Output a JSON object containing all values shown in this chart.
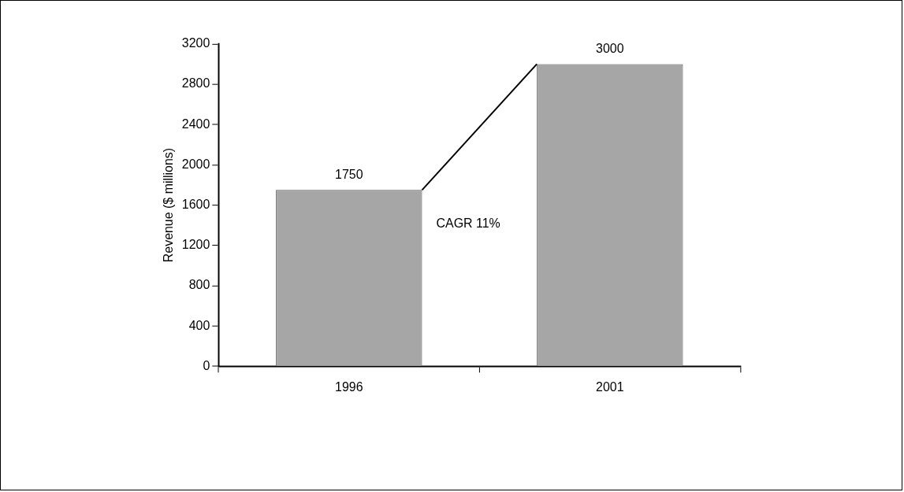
{
  "chart_data": {
    "type": "bar",
    "ylabel": "Revenue ($ millions)",
    "categories": [
      "1996",
      "2001"
    ],
    "values": [
      1750,
      3000
    ],
    "color": "#a6a6a6",
    "ylim": [
      0,
      3200
    ],
    "yticks": [
      0,
      400,
      800,
      1200,
      1600,
      2000,
      2400,
      2800,
      3200
    ],
    "data_labels": true,
    "grid": false,
    "legend": false,
    "annotations": [
      "CAGR 11%"
    ]
  }
}
